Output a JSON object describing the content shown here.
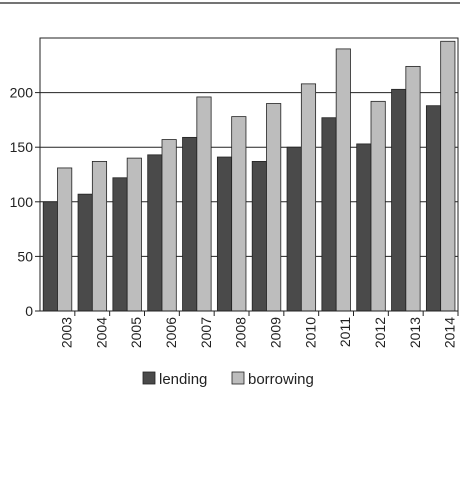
{
  "colors": {
    "lending": "#4a4a4a",
    "borrowing": "#bdbdbd",
    "axis": "#222222",
    "grid": "#222222"
  },
  "chart_data": {
    "type": "bar",
    "categories": [
      "2003",
      "2004",
      "2005",
      "2006",
      "2007",
      "2008",
      "2009",
      "2010",
      "2011",
      "2012",
      "2013",
      "2014"
    ],
    "series": [
      {
        "name": "lending",
        "values": [
          100,
          107,
          122,
          143,
          159,
          141,
          137,
          150,
          177,
          153,
          203,
          188
        ]
      },
      {
        "name": "borrowing",
        "values": [
          131,
          137,
          140,
          157,
          196,
          178,
          190,
          208,
          240,
          192,
          224,
          247
        ]
      }
    ],
    "yticks": [
      0,
      50,
      100,
      150,
      200
    ],
    "ylim": [
      0,
      250
    ],
    "grid": true,
    "legend_position": "bottom-center",
    "title": "",
    "xlabel": "",
    "ylabel": ""
  }
}
